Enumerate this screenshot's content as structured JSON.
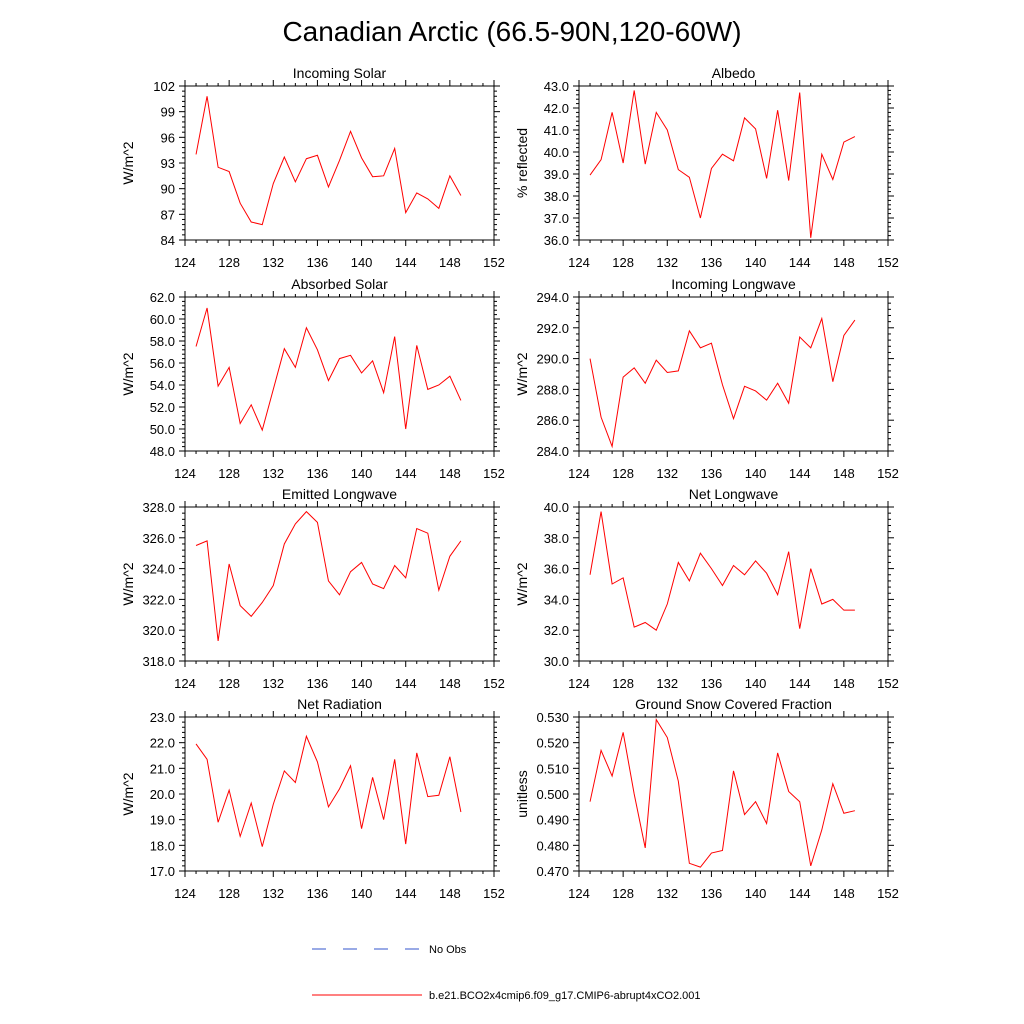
{
  "title": "Canadian Arctic (66.5-90N,120-60W)",
  "colors": {
    "model_line": "#ff0000",
    "obs_line": "#3355cc",
    "axis": "#000000"
  },
  "legend": {
    "obs_label": "No Obs",
    "model_label": "b.e21.BCO2x4cmip6.f09_g17.CMIP6-abrupt4xCO2.001"
  },
  "chart_data": [
    {
      "type": "line",
      "title": "Incoming Solar",
      "ylabel": "W/m^2",
      "xlim": [
        124,
        152
      ],
      "x_ticks": [
        124,
        128,
        132,
        136,
        140,
        144,
        148,
        152
      ],
      "ylim": [
        84,
        102
      ],
      "y_ticks": [
        84,
        87,
        90,
        93,
        96,
        99,
        102
      ],
      "y_decimals": 0,
      "series": [
        {
          "name": "b.e21.BCO2x4cmip6.f09_g17.CMIP6-abrupt4xCO2.001",
          "x": [
            125,
            126,
            127,
            128,
            129,
            130,
            131,
            132,
            133,
            134,
            135,
            136,
            137,
            138,
            139,
            140,
            141,
            142,
            143,
            144,
            145,
            146,
            147,
            148,
            149
          ],
          "values": [
            94.0,
            100.8,
            92.5,
            92.0,
            88.3,
            86.1,
            85.8,
            90.6,
            93.7,
            90.8,
            93.5,
            93.9,
            90.2,
            93.3,
            96.7,
            93.6,
            91.4,
            91.5,
            94.7,
            87.2,
            89.5,
            88.8,
            87.7,
            91.5,
            89.2
          ]
        }
      ]
    },
    {
      "type": "line",
      "title": "Albedo",
      "ylabel": "% reflected",
      "xlim": [
        124,
        152
      ],
      "x_ticks": [
        124,
        128,
        132,
        136,
        140,
        144,
        148,
        152
      ],
      "ylim": [
        36.0,
        43.0
      ],
      "y_ticks": [
        36.0,
        37.0,
        38.0,
        39.0,
        40.0,
        41.0,
        42.0,
        43.0
      ],
      "y_decimals": 1,
      "series": [
        {
          "name": "b.e21.BCO2x4cmip6.f09_g17.CMIP6-abrupt4xCO2.001",
          "x": [
            125,
            126,
            127,
            128,
            129,
            130,
            131,
            132,
            133,
            134,
            135,
            136,
            137,
            138,
            139,
            140,
            141,
            142,
            143,
            144,
            145,
            146,
            147,
            148,
            149
          ],
          "values": [
            38.95,
            39.65,
            41.8,
            39.5,
            42.8,
            39.45,
            41.8,
            41.0,
            39.2,
            38.85,
            37.0,
            39.25,
            39.9,
            39.6,
            41.55,
            41.05,
            38.8,
            41.9,
            38.7,
            42.7,
            36.1,
            39.9,
            38.75,
            40.45,
            40.7
          ]
        }
      ]
    },
    {
      "type": "line",
      "title": "Absorbed Solar",
      "ylabel": "W/m^2",
      "xlim": [
        124,
        152
      ],
      "x_ticks": [
        124,
        128,
        132,
        136,
        140,
        144,
        148,
        152
      ],
      "ylim": [
        48.0,
        62.0
      ],
      "y_ticks": [
        48.0,
        50.0,
        52.0,
        54.0,
        56.0,
        58.0,
        60.0,
        62.0
      ],
      "y_decimals": 1,
      "series": [
        {
          "name": "b.e21.BCO2x4cmip6.f09_g17.CMIP6-abrupt4xCO2.001",
          "x": [
            125,
            126,
            127,
            128,
            129,
            130,
            131,
            132,
            133,
            134,
            135,
            136,
            137,
            138,
            139,
            140,
            141,
            142,
            143,
            144,
            145,
            146,
            147,
            148,
            149
          ],
          "values": [
            57.5,
            61.0,
            53.9,
            55.6,
            50.5,
            52.2,
            49.9,
            53.6,
            57.3,
            55.6,
            59.2,
            57.2,
            54.4,
            56.4,
            56.7,
            55.1,
            56.2,
            53.3,
            58.4,
            50.0,
            57.6,
            53.6,
            54.0,
            54.8,
            52.6
          ]
        }
      ]
    },
    {
      "type": "line",
      "title": "Incoming Longwave",
      "ylabel": "W/m^2",
      "xlim": [
        124,
        152
      ],
      "x_ticks": [
        124,
        128,
        132,
        136,
        140,
        144,
        148,
        152
      ],
      "ylim": [
        284.0,
        294.0
      ],
      "y_ticks": [
        284.0,
        286.0,
        288.0,
        290.0,
        292.0,
        294.0
      ],
      "y_decimals": 1,
      "series": [
        {
          "name": "b.e21.BCO2x4cmip6.f09_g17.CMIP6-abrupt4xCO2.001",
          "x": [
            125,
            126,
            127,
            128,
            129,
            130,
            131,
            132,
            133,
            134,
            135,
            136,
            137,
            138,
            139,
            140,
            141,
            142,
            143,
            144,
            145,
            146,
            147,
            148,
            149
          ],
          "values": [
            290.0,
            286.2,
            284.3,
            288.8,
            289.4,
            288.4,
            289.9,
            289.1,
            289.2,
            291.8,
            290.7,
            291.0,
            288.3,
            286.1,
            288.2,
            287.9,
            287.3,
            288.4,
            287.1,
            291.4,
            290.7,
            292.6,
            288.5,
            291.5,
            292.5
          ]
        }
      ]
    },
    {
      "type": "line",
      "title": "Emitted Longwave",
      "ylabel": "W/m^2",
      "xlim": [
        124,
        152
      ],
      "x_ticks": [
        124,
        128,
        132,
        136,
        140,
        144,
        148,
        152
      ],
      "ylim": [
        318.0,
        328.0
      ],
      "y_ticks": [
        318.0,
        320.0,
        322.0,
        324.0,
        326.0,
        328.0
      ],
      "y_decimals": 1,
      "series": [
        {
          "name": "b.e21.BCO2x4cmip6.f09_g17.CMIP6-abrupt4xCO2.001",
          "x": [
            125,
            126,
            127,
            128,
            129,
            130,
            131,
            132,
            133,
            134,
            135,
            136,
            137,
            138,
            139,
            140,
            141,
            142,
            143,
            144,
            145,
            146,
            147,
            148,
            149
          ],
          "values": [
            325.5,
            325.8,
            319.3,
            324.3,
            321.6,
            320.9,
            321.8,
            322.9,
            325.6,
            326.9,
            327.7,
            327.0,
            323.2,
            322.3,
            323.8,
            324.4,
            323.0,
            322.7,
            324.2,
            323.4,
            326.6,
            326.3,
            322.6,
            324.8,
            325.8
          ]
        }
      ]
    },
    {
      "type": "line",
      "title": "Net Longwave",
      "ylabel": "W/m^2",
      "xlim": [
        124,
        152
      ],
      "x_ticks": [
        124,
        128,
        132,
        136,
        140,
        144,
        148,
        152
      ],
      "ylim": [
        30.0,
        40.0
      ],
      "y_ticks": [
        30.0,
        32.0,
        34.0,
        36.0,
        38.0,
        40.0
      ],
      "y_decimals": 1,
      "series": [
        {
          "name": "b.e21.BCO2x4cmip6.f09_g17.CMIP6-abrupt4xCO2.001",
          "x": [
            125,
            126,
            127,
            128,
            129,
            130,
            131,
            132,
            133,
            134,
            135,
            136,
            137,
            138,
            139,
            140,
            141,
            142,
            143,
            144,
            145,
            146,
            147,
            148,
            149
          ],
          "values": [
            35.6,
            39.7,
            35.0,
            35.4,
            32.2,
            32.5,
            32.0,
            33.7,
            36.4,
            35.2,
            37.0,
            36.0,
            34.9,
            36.2,
            35.6,
            36.5,
            35.7,
            34.3,
            37.1,
            32.1,
            36.0,
            33.7,
            34.0,
            33.3,
            33.3
          ]
        }
      ]
    },
    {
      "type": "line",
      "title": "Net Radiation",
      "ylabel": "W/m^2",
      "xlim": [
        124,
        152
      ],
      "x_ticks": [
        124,
        128,
        132,
        136,
        140,
        144,
        148,
        152
      ],
      "ylim": [
        17.0,
        23.0
      ],
      "y_ticks": [
        17.0,
        18.0,
        19.0,
        20.0,
        21.0,
        22.0,
        23.0
      ],
      "y_decimals": 1,
      "series": [
        {
          "name": "b.e21.BCO2x4cmip6.f09_g17.CMIP6-abrupt4xCO2.001",
          "x": [
            125,
            126,
            127,
            128,
            129,
            130,
            131,
            132,
            133,
            134,
            135,
            136,
            137,
            138,
            139,
            140,
            141,
            142,
            143,
            144,
            145,
            146,
            147,
            148,
            149
          ],
          "values": [
            21.95,
            21.35,
            18.9,
            20.15,
            18.35,
            19.65,
            17.95,
            19.6,
            20.9,
            20.45,
            22.25,
            21.25,
            19.5,
            20.2,
            21.1,
            18.65,
            20.65,
            19.0,
            21.35,
            18.05,
            21.6,
            19.9,
            19.95,
            21.45,
            19.3
          ]
        }
      ]
    },
    {
      "type": "line",
      "title": "Ground Snow Covered Fraction",
      "ylabel": "unitless",
      "xlim": [
        124,
        152
      ],
      "x_ticks": [
        124,
        128,
        132,
        136,
        140,
        144,
        148,
        152
      ],
      "ylim": [
        0.47,
        0.53
      ],
      "y_ticks": [
        0.47,
        0.48,
        0.49,
        0.5,
        0.51,
        0.52,
        0.53
      ],
      "y_decimals": 3,
      "series": [
        {
          "name": "b.e21.BCO2x4cmip6.f09_g17.CMIP6-abrupt4xCO2.001",
          "x": [
            125,
            126,
            127,
            128,
            129,
            130,
            131,
            132,
            133,
            134,
            135,
            136,
            137,
            138,
            139,
            140,
            141,
            142,
            143,
            144,
            145,
            146,
            147,
            148,
            149
          ],
          "values": [
            0.497,
            0.517,
            0.507,
            0.524,
            0.5,
            0.479,
            0.529,
            0.522,
            0.505,
            0.473,
            0.4715,
            0.477,
            0.478,
            0.509,
            0.492,
            0.497,
            0.4885,
            0.516,
            0.501,
            0.497,
            0.472,
            0.486,
            0.504,
            0.4925,
            0.4935
          ]
        }
      ]
    }
  ]
}
